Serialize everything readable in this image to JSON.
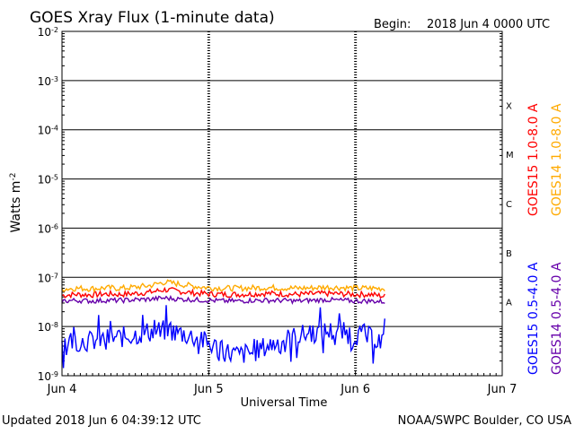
{
  "title": "GOES Xray Flux (1-minute data)",
  "begin": {
    "label": "Begin:",
    "value": "2018 Jun 4 0000 UTC"
  },
  "footer": {
    "updated": "Updated 2018 Jun  6 04:39:12 UTC",
    "source": "NOAA/SWPC Boulder, CO USA"
  },
  "colors": {
    "goes15_long": "#ff0000",
    "goes14_long": "#ffaa00",
    "goes15_short": "#0000ff",
    "goes14_short": "#6600aa",
    "axis": "#000000"
  },
  "chart_data": {
    "type": "line",
    "title": "GOES Xray Flux (1-minute data)",
    "xlabel": "Universal Time",
    "ylabel": "Watts m",
    "ylabel_exponent": "-2",
    "yscale": "log",
    "ylim": [
      1e-09,
      0.01
    ],
    "xlim": [
      0,
      3
    ],
    "grid": true,
    "y_ticks": [
      {
        "label": "10",
        "exp": "-9",
        "value": 1e-09
      },
      {
        "label": "10",
        "exp": "-8",
        "value": 1e-08
      },
      {
        "label": "10",
        "exp": "-7",
        "value": 1e-07
      },
      {
        "label": "10",
        "exp": "-6",
        "value": 1e-06
      },
      {
        "label": "10",
        "exp": "-5",
        "value": 1e-05
      },
      {
        "label": "10",
        "exp": "-4",
        "value": 0.0001
      },
      {
        "label": "10",
        "exp": "-3",
        "value": 0.001
      },
      {
        "label": "10",
        "exp": "-2",
        "value": 0.01
      }
    ],
    "x_ticks": [
      {
        "label": "Jun 4",
        "value": 0
      },
      {
        "label": "Jun 5",
        "value": 1
      },
      {
        "label": "Jun 6",
        "value": 2
      },
      {
        "label": "Jun 7",
        "value": 3
      }
    ],
    "flare_classes": [
      {
        "label": "A",
        "low": 1e-08
      },
      {
        "label": "B",
        "low": 1e-07
      },
      {
        "label": "C",
        "low": 1e-06
      },
      {
        "label": "M",
        "low": 1e-05
      },
      {
        "label": "X",
        "low": 0.0001
      }
    ],
    "x": [
      0,
      0.1,
      0.2,
      0.3,
      0.4,
      0.5,
      0.6,
      0.7,
      0.8,
      0.9,
      1.0,
      1.1,
      1.2,
      1.3,
      1.4,
      1.5,
      1.6,
      1.7,
      1.8,
      1.9,
      2.0,
      2.1,
      2.2
    ],
    "series": [
      {
        "name": "GOES15 1.0-8.0 A",
        "color": "#ff0000",
        "values": [
          4.3e-08,
          4.5e-08,
          4.4e-08,
          4.6e-08,
          4.5e-08,
          4.7e-08,
          5e-08,
          5.6e-08,
          5.2e-08,
          4.8e-08,
          4.6e-08,
          4.5e-08,
          4.5e-08,
          4.6e-08,
          4.7e-08,
          4.6e-08,
          4.5e-08,
          4.6e-08,
          4.7e-08,
          4.6e-08,
          4.5e-08,
          4.5e-08,
          4.1e-08
        ]
      },
      {
        "name": "GOES14 1.0-8.0 A",
        "color": "#ffaa00",
        "values": [
          5.8e-08,
          6e-08,
          5.9e-08,
          6.1e-08,
          6e-08,
          6.3e-08,
          6.8e-08,
          8e-08,
          7.3e-08,
          6.6e-08,
          6.2e-08,
          6e-08,
          6e-08,
          6.1e-08,
          6.2e-08,
          6.1e-08,
          6e-08,
          6.1e-08,
          6.3e-08,
          6.2e-08,
          6e-08,
          6e-08,
          5.9e-08
        ]
      },
      {
        "name": "GOES15 0.5-4.0 A",
        "color": "#0000ff",
        "values": [
          5e-09,
          5.3e-09,
          5e-09,
          5.5e-09,
          6e-09,
          6.8e-09,
          7.8e-09,
          8.2e-09,
          7.5e-09,
          6e-09,
          4.5e-09,
          3.2e-09,
          2.6e-09,
          3e-09,
          4e-09,
          5.2e-09,
          6.3e-09,
          7.4e-09,
          8e-09,
          7.6e-09,
          7e-09,
          6e-09,
          5e-09
        ]
      },
      {
        "name": "GOES14 0.5-4.0 A",
        "color": "#6600aa",
        "values": [
          3.3e-08,
          3.4e-08,
          3.3e-08,
          3.4e-08,
          3.4e-08,
          3.5e-08,
          3.6e-08,
          3.8e-08,
          3.6e-08,
          3.5e-08,
          3.4e-08,
          3.3e-08,
          3.3e-08,
          3.4e-08,
          3.4e-08,
          3.4e-08,
          3.3e-08,
          3.4e-08,
          3.5e-08,
          3.4e-08,
          3.3e-08,
          3.3e-08,
          3.2e-08
        ]
      }
    ],
    "legend": {
      "placement": "right",
      "entries": [
        {
          "text": "GOES15 1.0-8.0 A",
          "color": "#ff0000"
        },
        {
          "text": "GOES14 1.0-8.0 A",
          "color": "#ffaa00"
        },
        {
          "text": "GOES15 0.5-4.0 A",
          "color": "#0000ff"
        },
        {
          "text": "GOES14 0.5-4.0 A",
          "color": "#6600aa"
        }
      ]
    }
  }
}
